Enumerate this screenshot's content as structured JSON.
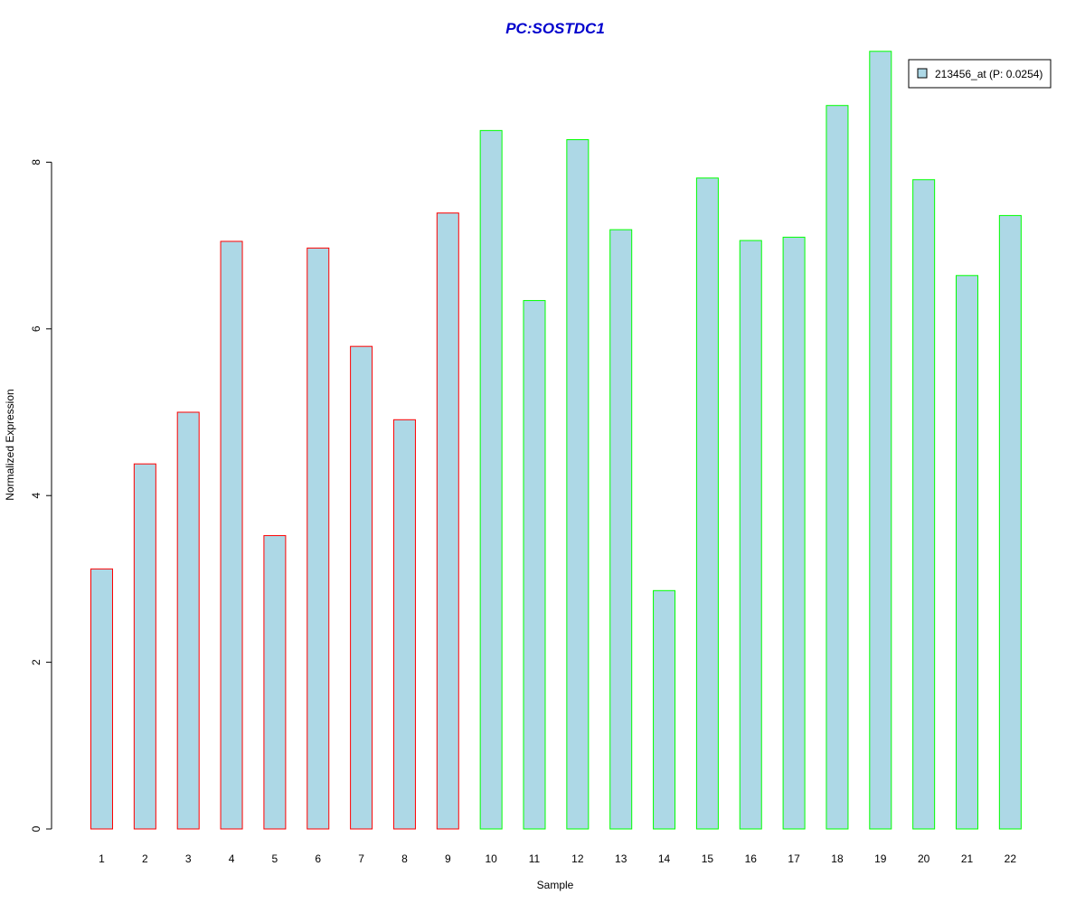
{
  "chart_data": {
    "type": "bar",
    "title": "PC:SOSTDC1",
    "xlabel": "Sample",
    "ylabel": "Normalized Expression",
    "categories": [
      "1",
      "2",
      "3",
      "4",
      "5",
      "6",
      "7",
      "8",
      "9",
      "10",
      "11",
      "12",
      "13",
      "14",
      "15",
      "16",
      "17",
      "18",
      "19",
      "20",
      "21",
      "22"
    ],
    "series": [
      {
        "name": "213456_at (P: 0.0254)",
        "values": [
          3.12,
          4.38,
          5.0,
          7.05,
          3.52,
          6.97,
          5.79,
          4.91,
          7.39,
          8.38,
          6.34,
          8.27,
          7.19,
          2.86,
          7.81,
          7.06,
          7.1,
          8.68,
          9.33,
          7.79,
          6.64,
          7.36
        ]
      }
    ],
    "group_border_colors": [
      "#ff0000",
      "#ff0000",
      "#ff0000",
      "#ff0000",
      "#ff0000",
      "#ff0000",
      "#ff0000",
      "#ff0000",
      "#ff0000",
      "#00ff00",
      "#00ff00",
      "#00ff00",
      "#00ff00",
      "#00ff00",
      "#00ff00",
      "#00ff00",
      "#00ff00",
      "#00ff00",
      "#00ff00",
      "#00ff00",
      "#00ff00",
      "#00ff00"
    ],
    "yticks": [
      "0",
      "2",
      "4",
      "6",
      "8"
    ],
    "ylim": [
      0,
      9.5
    ],
    "bar_fill": "#add8e6",
    "title_color": "#0000cd",
    "legend_position": "top-right",
    "grid": false
  }
}
